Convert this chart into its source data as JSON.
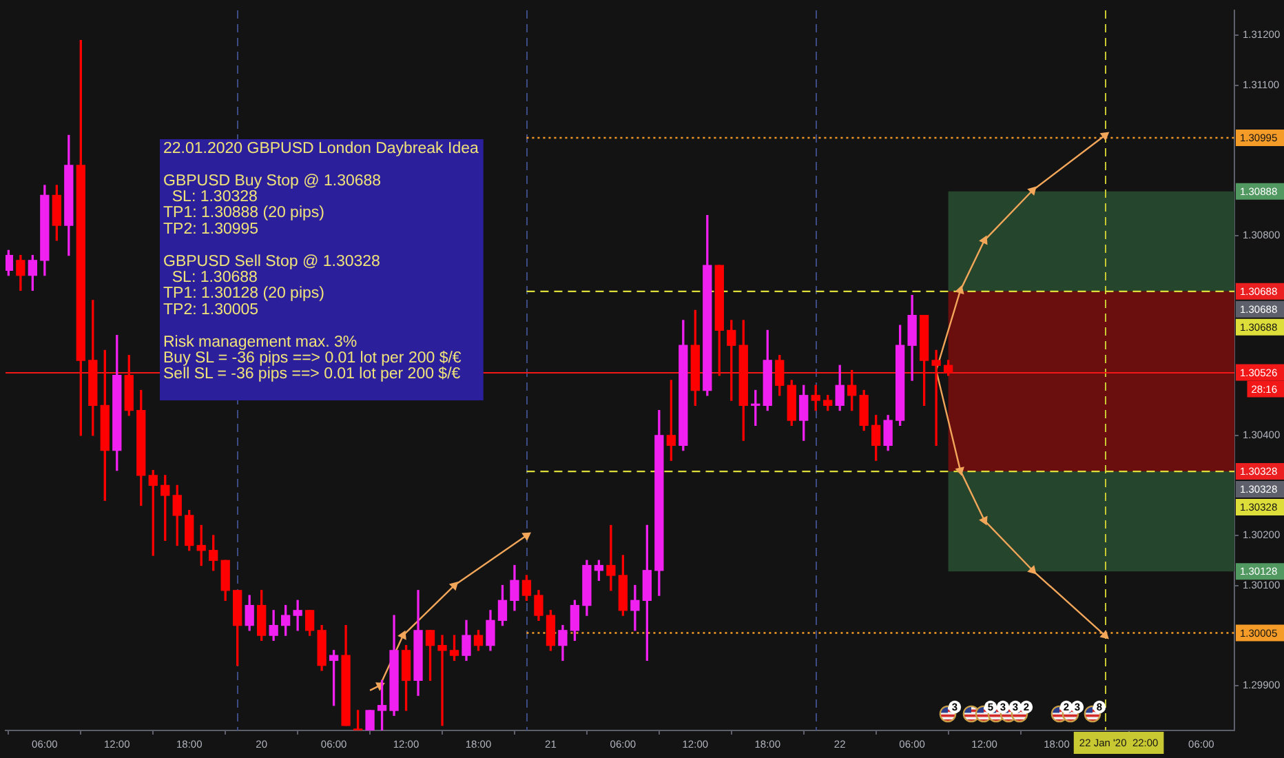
{
  "chart_data": {
    "type": "candlestick",
    "x": [
      "2020-01-19T03:00",
      "2020-01-19T04:00",
      "2020-01-19T05:00",
      "2020-01-19T06:00",
      "2020-01-19T07:00",
      "2020-01-19T08:00",
      "2020-01-19T09:00",
      "2020-01-19T10:00",
      "2020-01-19T11:00",
      "2020-01-19T12:00",
      "2020-01-19T13:00",
      "2020-01-19T14:00",
      "2020-01-19T15:00",
      "2020-01-19T16:00",
      "2020-01-19T17:00",
      "2020-01-19T18:00",
      "2020-01-19T19:00",
      "2020-01-19T20:00",
      "2020-01-19T21:00",
      "2020-01-19T22:00",
      "2020-01-19T23:00",
      "2020-01-20T00:00",
      "2020-01-20T01:00",
      "2020-01-20T02:00",
      "2020-01-20T03:00",
      "2020-01-20T04:00",
      "2020-01-20T05:00",
      "2020-01-20T06:00",
      "2020-01-20T07:00",
      "2020-01-20T08:00",
      "2020-01-20T09:00",
      "2020-01-20T10:00",
      "2020-01-20T11:00",
      "2020-01-20T12:00",
      "2020-01-20T13:00",
      "2020-01-20T14:00",
      "2020-01-20T15:00",
      "2020-01-20T16:00",
      "2020-01-20T17:00",
      "2020-01-20T18:00",
      "2020-01-20T19:00",
      "2020-01-20T20:00",
      "2020-01-20T21:00",
      "2020-01-20T22:00",
      "2020-01-20T23:00",
      "2020-01-21T00:00",
      "2020-01-21T01:00",
      "2020-01-21T02:00",
      "2020-01-21T03:00",
      "2020-01-21T04:00",
      "2020-01-21T05:00",
      "2020-01-21T06:00",
      "2020-01-21T07:00",
      "2020-01-21T08:00",
      "2020-01-21T09:00",
      "2020-01-21T10:00",
      "2020-01-21T11:00",
      "2020-01-21T12:00",
      "2020-01-21T13:00",
      "2020-01-21T14:00",
      "2020-01-21T15:00",
      "2020-01-21T16:00",
      "2020-01-21T17:00",
      "2020-01-21T18:00",
      "2020-01-21T19:00",
      "2020-01-21T20:00",
      "2020-01-21T21:00",
      "2020-01-21T22:00",
      "2020-01-21T23:00",
      "2020-01-22T00:00",
      "2020-01-22T01:00",
      "2020-01-22T02:00",
      "2020-01-22T03:00",
      "2020-01-22T04:00",
      "2020-01-22T05:00",
      "2020-01-22T06:00",
      "2020-01-22T07:00",
      "2020-01-22T08:00",
      "2020-01-22T09:00"
    ],
    "ohlc": [
      [
        1.3073,
        1.3077,
        1.3072,
        1.3076
      ],
      [
        1.3075,
        1.3076,
        1.3069,
        1.3072
      ],
      [
        1.3072,
        1.3076,
        1.3069,
        1.3075
      ],
      [
        1.3075,
        1.309,
        1.3072,
        1.3088
      ],
      [
        1.3088,
        1.309,
        1.3079,
        1.3082
      ],
      [
        1.3082,
        1.31,
        1.3076,
        1.3094
      ],
      [
        1.3094,
        1.3119,
        1.304,
        1.3055
      ],
      [
        1.3055,
        1.3067,
        1.304,
        1.3046
      ],
      [
        1.3046,
        1.3057,
        1.3027,
        1.3037
      ],
      [
        1.3037,
        1.306,
        1.3033,
        1.3052
      ],
      [
        1.3052,
        1.3056,
        1.3044,
        1.3045
      ],
      [
        1.3045,
        1.3049,
        1.3026,
        1.3032
      ],
      [
        1.3032,
        1.3033,
        1.3016,
        1.303
      ],
      [
        1.303,
        1.3032,
        1.3019,
        1.3028
      ],
      [
        1.3028,
        1.303,
        1.3018,
        1.3024
      ],
      [
        1.3024,
        1.3025,
        1.3017,
        1.3018
      ],
      [
        1.3018,
        1.3022,
        1.3014,
        1.3017
      ],
      [
        1.3017,
        1.302,
        1.3013,
        1.3015
      ],
      [
        1.3015,
        1.3015,
        1.3007,
        1.3009
      ],
      [
        1.3009,
        1.3009,
        1.2994,
        1.3002
      ],
      [
        1.3002,
        1.3008,
        1.3001,
        1.3006
      ],
      [
        1.3006,
        1.3009,
        1.2999,
        1.3
      ],
      [
        1.3,
        1.3005,
        1.2999,
        1.3002
      ],
      [
        1.3002,
        1.3006,
        1.3,
        1.3004
      ],
      [
        1.3004,
        1.3007,
        1.3001,
        1.3005
      ],
      [
        1.3005,
        1.3005,
        1.3,
        1.3001
      ],
      [
        1.3001,
        1.3002,
        1.2993,
        1.2994
      ],
      [
        1.2995,
        1.2997,
        1.2986,
        1.2996
      ],
      [
        1.2996,
        1.3002,
        1.2982,
        1.2982
      ],
      [
        1.2981,
        1.2985,
        1.2981,
        1.2981
      ],
      [
        1.2981,
        1.2985,
        1.2981,
        1.2985
      ],
      [
        1.2985,
        1.2991,
        1.2981,
        1.2986
      ],
      [
        1.2985,
        1.3004,
        1.2984,
        1.2997
      ],
      [
        1.2997,
        1.2998,
        1.2985,
        1.2991
      ],
      [
        1.2991,
        1.3009,
        1.2988,
        1.3001
      ],
      [
        1.3001,
        1.3001,
        1.2991,
        1.2998
      ],
      [
        1.2998,
        1.3,
        1.2982,
        1.2997
      ],
      [
        1.2997,
        1.3,
        1.2995,
        1.2996
      ],
      [
        1.2996,
        1.3003,
        1.2995,
        1.3
      ],
      [
        1.3,
        1.3001,
        1.2997,
        1.2998
      ],
      [
        1.2998,
        1.3005,
        1.2997,
        1.3003
      ],
      [
        1.3003,
        1.301,
        1.3002,
        1.3007
      ],
      [
        1.3007,
        1.3014,
        1.3005,
        1.3011
      ],
      [
        1.3011,
        1.3012,
        1.3007,
        1.3008
      ],
      [
        1.3008,
        1.3009,
        1.3003,
        1.3004
      ],
      [
        1.3004,
        1.3005,
        1.2997,
        1.2998
      ],
      [
        1.2998,
        1.3002,
        1.2995,
        1.3001
      ],
      [
        1.3001,
        1.3007,
        1.2999,
        1.3006
      ],
      [
        1.3006,
        1.3015,
        1.3004,
        1.3014
      ],
      [
        1.3013,
        1.3015,
        1.3011,
        1.3014
      ],
      [
        1.3014,
        1.3022,
        1.3009,
        1.3012
      ],
      [
        1.3012,
        1.3016,
        1.3004,
        1.3005
      ],
      [
        1.3005,
        1.301,
        1.3001,
        1.3007
      ],
      [
        1.3007,
        1.3022,
        1.2995,
        1.3013
      ],
      [
        1.3013,
        1.3045,
        1.3008,
        1.304
      ],
      [
        1.304,
        1.3051,
        1.3035,
        1.3038
      ],
      [
        1.3038,
        1.3063,
        1.3037,
        1.3058
      ],
      [
        1.3058,
        1.3065,
        1.3046,
        1.3049
      ],
      [
        1.3049,
        1.3084,
        1.3048,
        1.3074
      ],
      [
        1.3074,
        1.3074,
        1.3052,
        1.3061
      ],
      [
        1.3061,
        1.3063,
        1.3047,
        1.3058
      ],
      [
        1.3058,
        1.3063,
        1.3039,
        1.3046
      ],
      [
        1.3046,
        1.3049,
        1.3042,
        1.3046
      ],
      [
        1.3046,
        1.3061,
        1.3045,
        1.3055
      ],
      [
        1.3055,
        1.3056,
        1.3048,
        1.305
      ],
      [
        1.305,
        1.3051,
        1.3042,
        1.3043
      ],
      [
        1.3043,
        1.305,
        1.3039,
        1.3048
      ],
      [
        1.3048,
        1.305,
        1.3045,
        1.3047
      ],
      [
        1.3047,
        1.3048,
        1.3045,
        1.3046
      ],
      [
        1.3046,
        1.3054,
        1.3045,
        1.305
      ],
      [
        1.305,
        1.3053,
        1.3045,
        1.3048
      ],
      [
        1.3048,
        1.3049,
        1.3041,
        1.3042
      ],
      [
        1.3042,
        1.3044,
        1.3035,
        1.3038
      ],
      [
        1.3038,
        1.3044,
        1.3037,
        1.3043
      ],
      [
        1.3043,
        1.3062,
        1.3042,
        1.3058
      ],
      [
        1.3058,
        1.3068,
        1.3051,
        1.3064
      ],
      [
        1.3064,
        1.3064,
        1.3046,
        1.3055
      ],
      [
        1.3055,
        1.3057,
        1.3038,
        1.3054
      ],
      [
        1.3054,
        1.3055,
        1.3052,
        1.30526
      ]
    ],
    "colors": [
      "#f020f0",
      "#ff0000",
      "#f020f0",
      "#f020f0",
      "#ff0000",
      "#f020f0",
      "#ff0000",
      "#ff0000",
      "#ff0000",
      "#f020f0",
      "#ff0000",
      "#ff0000",
      "#ff0000",
      "#ff0000",
      "#ff0000",
      "#ff0000",
      "#ff0000",
      "#ff0000",
      "#ff0000",
      "#ff0000",
      "#f020f0",
      "#ff0000",
      "#f020f0",
      "#f020f0",
      "#f020f0",
      "#ff0000",
      "#ff0000",
      "#f020f0",
      "#ff0000",
      "#ff0000",
      "#f020f0",
      "#f020f0",
      "#f020f0",
      "#ff0000",
      "#f020f0",
      "#ff0000",
      "#ff0000",
      "#ff0000",
      "#f020f0",
      "#ff0000",
      "#f020f0",
      "#f020f0",
      "#f020f0",
      "#ff0000",
      "#ff0000",
      "#ff0000",
      "#f020f0",
      "#f020f0",
      "#f020f0",
      "#f020f0",
      "#ff0000",
      "#ff0000",
      "#f020f0",
      "#f020f0",
      "#f020f0",
      "#ff0000",
      "#f020f0",
      "#ff0000",
      "#f020f0",
      "#ff0000",
      "#ff0000",
      "#ff0000",
      "#f020f0",
      "#f020f0",
      "#ff0000",
      "#ff0000",
      "#f020f0",
      "#ff0000",
      "#ff0000",
      "#f020f0",
      "#ff0000",
      "#ff0000",
      "#ff0000",
      "#f020f0",
      "#f020f0",
      "#f020f0",
      "#ff0000",
      "#ff0000",
      "#ff0000"
    ],
    "series": [
      {
        "type": "line",
        "color": "#f2a65a",
        "marker": "triangle",
        "x": [
          "2020-01-22T08:00",
          "2020-01-22T10:00",
          "2020-01-22T12:00",
          "2020-01-22T16:00",
          "2020-01-22T22:00"
        ],
        "values": [
          1.3053,
          1.3069,
          1.3079,
          1.3089,
          1.31
        ]
      },
      {
        "type": "line",
        "color": "#f2a65a",
        "marker": "triangle",
        "x": [
          "2020-01-22T08:00",
          "2020-01-22T10:00",
          "2020-01-22T12:00",
          "2020-01-22T16:00",
          "2020-01-22T22:00"
        ],
        "values": [
          1.3053,
          1.3033,
          1.3023,
          1.3013,
          1.3
        ]
      },
      {
        "type": "line",
        "color": "#f2a65a",
        "marker": "triangle",
        "x": [
          "2020-01-20T09:00",
          "2020-01-20T09:50",
          "2020-01-20T11:45",
          "2020-01-20T16:00",
          "2020-01-20T22:00"
        ],
        "values": [
          1.2989,
          1.299,
          1.3,
          1.301,
          1.302
        ]
      },
      {
        "type": "line",
        "color": "#f59c28",
        "line_style": "dotted",
        "x": [
          "2020-01-20T22:00",
          "2020-01-23T08:45"
        ],
        "values": [
          1.30995,
          1.30995
        ],
        "value_labels": [
          null,
          "1.30995"
        ]
      },
      {
        "type": "line",
        "color": "#dede3a",
        "line_style": "dashed",
        "x": [
          "2020-01-20T22:00",
          "2020-01-23T08:45"
        ],
        "values": [
          1.30688,
          1.30688
        ],
        "value_labels": [
          null,
          "1.30688"
        ]
      },
      {
        "type": "line",
        "color": "#dede3a",
        "line_style": "dashed",
        "x": [
          "2020-01-20T22:00",
          "2020-01-23T08:45"
        ],
        "values": [
          1.30328,
          1.30328
        ],
        "value_labels": [
          null,
          "1.30328"
        ]
      },
      {
        "type": "line",
        "color": "#f59c28",
        "line_style": "dotted",
        "x": [
          "2020-01-20T22:00",
          "2020-01-23T08:45"
        ],
        "values": [
          1.30005,
          1.30005
        ],
        "value_labels": [
          null,
          "1.30005"
        ]
      }
    ],
    "xlim": [
      "2020-01-19T02:45",
      "2020-01-23T08:45"
    ],
    "xticks": [
      {
        "value": "2020-01-19T06:00",
        "label": "06:00"
      },
      {
        "value": "2020-01-19T12:00",
        "label": "12:00"
      },
      {
        "value": "2020-01-19T18:00",
        "label": "18:00"
      },
      {
        "value": "2020-01-20T00:00",
        "label": "20"
      },
      {
        "value": "2020-01-20T06:00",
        "label": "06:00"
      },
      {
        "value": "2020-01-20T12:00",
        "label": "12:00"
      },
      {
        "value": "2020-01-20T18:00",
        "label": "18:00"
      },
      {
        "value": "2020-01-21T00:00",
        "label": "21"
      },
      {
        "value": "2020-01-21T06:00",
        "label": "06:00"
      },
      {
        "value": "2020-01-21T12:00",
        "label": "12:00"
      },
      {
        "value": "2020-01-21T18:00",
        "label": "18:00"
      },
      {
        "value": "2020-01-22T00:00",
        "label": "22"
      },
      {
        "value": "2020-01-22T06:00",
        "label": "06:00"
      },
      {
        "value": "2020-01-22T12:00",
        "label": "12:00"
      },
      {
        "value": "2020-01-22T18:00",
        "label": "18:00"
      },
      {
        "value": "2020-01-23T06:00",
        "label": "06:00"
      }
    ],
    "ylim": [
      1.2981,
      1.3125
    ],
    "yticks": [
      {
        "value": 1.299,
        "label": "1.29900"
      },
      {
        "value": 1.301,
        "label": "1.30100"
      },
      {
        "value": 1.302,
        "label": "1.30200"
      },
      {
        "value": 1.304,
        "label": "1.30400"
      },
      {
        "value": 1.308,
        "label": "1.30800"
      },
      {
        "value": 1.311,
        "label": "1.31100"
      },
      {
        "value": 1.312,
        "label": "1.31200"
      }
    ],
    "ref_lines": [
      {
        "axis": "x",
        "value": "2020-01-19T22:00",
        "color": "#3e4c86",
        "line_style": "dashed"
      },
      {
        "axis": "x",
        "value": "2020-01-20T22:00",
        "color": "#3e4c86",
        "line_style": "dashed"
      },
      {
        "axis": "x",
        "value": "2020-01-21T22:00",
        "color": "#3e4c86",
        "line_style": "dashed"
      },
      {
        "axis": "x",
        "value": "2020-01-22T22:00",
        "label": "22 Jan '20  22:00",
        "color": "#c8c832",
        "line_style": "dashed"
      },
      {
        "axis": "y",
        "value": 1.30526,
        "label": "1.30526\n28:16",
        "color": "#f21818",
        "line_style": "solid"
      }
    ],
    "bands": [
      {
        "axis": "y",
        "from": 1.30688,
        "to": 1.30888,
        "color": "#25452c",
        "label": "1.30888"
      },
      {
        "axis": "y",
        "from": 1.30688,
        "to": 1.30328,
        "color": "#6b0e0e",
        "label": "1.30328"
      },
      {
        "axis": "y",
        "from": 1.30328,
        "to": 1.30128,
        "color": "#25452c",
        "label": "1.30128"
      },
      {
        "axis": "y",
        "from": 1.30328,
        "to": 1.30688,
        "color": "#6b0e0e",
        "label": "1.30688"
      }
    ],
    "annotations": [
      "22.01.2020 GBPUSD London Daybreak Idea\n\nGBPUSD Buy Stop @ 1.30688\n  SL: 1.30328\nTP1: 1.30888 (20 pips)\nTP2: 1.30995\n\nGBPUSD Sell Stop @ 1.30328\n  SL: 1.30688\nTP1: 1.30128 (20 pips)\nTP2: 1.30005\n\nRisk management max. 3%\nBuy SL = -36 pips ==> 0.01 lot per 200 $/€\nSell SL = -36 pips ==> 0.01 lot per 200 $/€",
      {
        "text": "1.30688",
        "y": 1.30688
      },
      {
        "text": "1.30328",
        "y": 1.30328
      },
      "3",
      "5",
      "3",
      "3",
      "2",
      "2",
      "3",
      "8"
    ]
  }
}
